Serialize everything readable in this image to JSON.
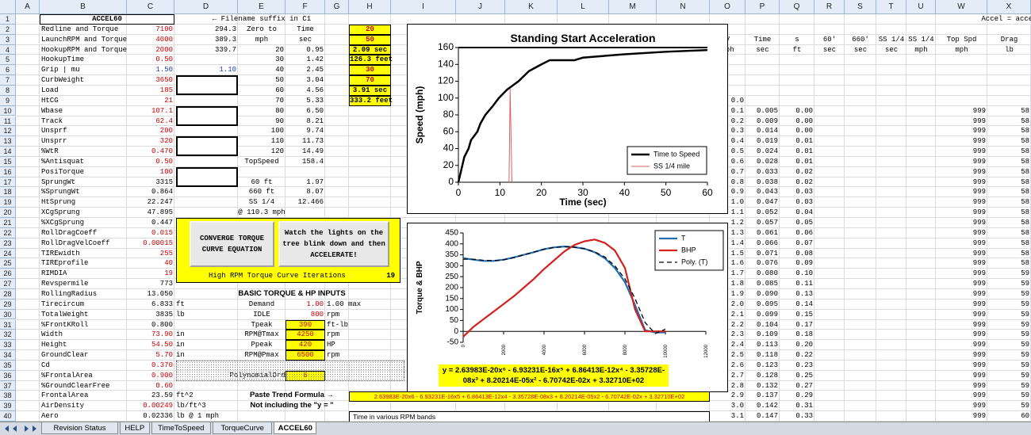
{
  "sheet": {
    "column_headers": [
      "A",
      "B",
      "C",
      "D",
      "E",
      "F",
      "G",
      "H",
      "I",
      "J",
      "K",
      "L",
      "M",
      "N",
      "O",
      "P",
      "Q",
      "R",
      "S",
      "T",
      "U",
      "W",
      "X"
    ],
    "row_headers": [
      "1",
      "2",
      "3",
      "4",
      "5",
      "6",
      "7",
      "8",
      "9",
      "10",
      "11",
      "12",
      "13",
      "14",
      "15",
      "16",
      "17",
      "18",
      "19",
      "20",
      "21",
      "22",
      "23",
      "24",
      "25",
      "26",
      "27",
      "28",
      "29",
      "30",
      "31",
      "32",
      "33",
      "34",
      "35",
      "36",
      "37",
      "38",
      "39",
      "40"
    ],
    "rows": [
      {
        "B": {
          "text": "ACCEL60",
          "bold": true
        },
        "E": "← Filename suffix in C1",
        "X": "Accel = accel"
      },
      {
        "B": "Redline and Torque",
        "C": {
          "text": "7100",
          "color": "#cc0000"
        },
        "D": "294.3",
        "E": "Zero to",
        "F": "Time",
        "H": {
          "text": "20",
          "color": "#cc0000",
          "fill": "#ffff00",
          "bold": true
        }
      },
      {
        "B": "LaunchRPM and Torque",
        "C": {
          "text": "4000",
          "color": "#cc0000"
        },
        "D": "389.3",
        "E": "mph",
        "F": "sec",
        "H": {
          "text": "50",
          "color": "#cc0000",
          "fill": "#ffff00",
          "bold": true
        },
        "O": "V",
        "P": "Time",
        "Q": "s",
        "R": "60'",
        "S": "660'",
        "T": "SS 1/4",
        "U": "SS 1/4",
        "W": "Top Spd",
        "X": "Drag"
      },
      {
        "B": "HookupRPM and Torque",
        "C": {
          "text": "2000",
          "color": "#cc0000"
        },
        "D": "339.7",
        "E": "20",
        "F": "0.95",
        "H": {
          "text": "2.09 sec",
          "color": "#000000",
          "fill": "#ffff00",
          "bold": true
        },
        "O": "mph",
        "P": "sec",
        "Q": "ft",
        "R": "sec",
        "S": "sec",
        "T": "sec",
        "U": "mph",
        "W": "mph",
        "X": "lb"
      },
      {
        "B": "HookupTime",
        "C": {
          "text": "0.50",
          "color": "#cc0000"
        },
        "E": "30",
        "F": "1.42",
        "H": {
          "text": "126.3 feet",
          "color": "#000000",
          "fill": "#ffff00",
          "bold": true
        }
      },
      {
        "B": "Grip | mu",
        "C": {
          "text": "1.50",
          "color": "#2040c0"
        },
        "D": {
          "text": "1.10",
          "color": "#2040c0"
        },
        "E": "40",
        "F": "2.45",
        "H": {
          "text": "30",
          "color": "#cc0000",
          "fill": "#ffff00",
          "bold": true
        }
      },
      {
        "B": "CurbWeight",
        "C": {
          "text": "3650",
          "color": "#cc0000"
        },
        "E": "50",
        "F": "3.04",
        "H": {
          "text": "70",
          "color": "#cc0000",
          "fill": "#ffff00",
          "bold": true
        }
      },
      {
        "B": "Load",
        "C": {
          "text": "185",
          "color": "#cc0000"
        },
        "E": "60",
        "F": "4.56",
        "H": {
          "text": "3.91 sec",
          "color": "#000000",
          "fill": "#ffff00",
          "bold": true
        }
      },
      {
        "B": "HtCG",
        "C": {
          "text": "21",
          "color": "#cc0000"
        },
        "E": "70",
        "F": "5.33",
        "H": {
          "text": "333.2 feet",
          "color": "#000000",
          "fill": "#ffff00",
          "bold": true
        },
        "O": "0.0"
      },
      {
        "B": "Wbase",
        "C": {
          "text": "107.1",
          "color": "#cc0000"
        },
        "E": "80",
        "F": "6.50",
        "O": "0.1",
        "P": "0.005",
        "Q": "0.00",
        "W": "999",
        "X": "58"
      },
      {
        "B": "Track",
        "C": {
          "text": "62.4",
          "color": "#cc0000"
        },
        "E": "90",
        "F": "8.21",
        "O": "0.2",
        "P": "0.009",
        "Q": "0.00",
        "W": "999",
        "X": "58"
      },
      {
        "B": "Unsprf",
        "C": {
          "text": "200",
          "color": "#cc0000"
        },
        "E": "100",
        "F": "9.74",
        "O": "0.3",
        "P": "0.014",
        "Q": "0.00",
        "W": "999",
        "X": "58"
      },
      {
        "B": "Unsprr",
        "C": {
          "text": "320",
          "color": "#cc0000"
        },
        "E": "110",
        "F": "11.73",
        "O": "0.4",
        "P": "0.019",
        "Q": "0.01",
        "W": "999",
        "X": "58"
      },
      {
        "B": "%WtR",
        "C": {
          "text": "0.470",
          "color": "#cc0000"
        },
        "E": "120",
        "F": "14.49",
        "O": "0.5",
        "P": "0.024",
        "Q": "0.01",
        "W": "999",
        "X": "58"
      },
      {
        "B": "%Antisquat",
        "C": {
          "text": "0.50",
          "color": "#cc0000"
        },
        "E": "TopSpeed",
        "F": "158.4",
        "O": "0.6",
        "P": "0.028",
        "Q": "0.01",
        "W": "999",
        "X": "58"
      },
      {
        "B": "PosiTorque",
        "C": {
          "text": "100",
          "color": "#cc0000"
        },
        "O": "0.7",
        "P": "0.033",
        "Q": "0.02",
        "W": "999",
        "X": "58"
      },
      {
        "B": "SprungWt",
        "C": "3315",
        "E": "60 ft",
        "F": "1.97",
        "O": "0.8",
        "P": "0.038",
        "Q": "0.02",
        "W": "999",
        "X": "58"
      },
      {
        "B": "%SprungWt",
        "C": "0.864",
        "E": "660 ft",
        "F": "8.07",
        "O": "0.9",
        "P": "0.043",
        "Q": "0.03",
        "W": "999",
        "X": "58"
      },
      {
        "B": "HtSprung",
        "C": "22.247",
        "E": "SS 1/4",
        "F": "12.466",
        "O": "1.0",
        "P": "0.047",
        "Q": "0.03",
        "W": "999",
        "X": "58"
      },
      {
        "B": "XCgSprung",
        "C": "47.895",
        "E": "@ 110.3 mph",
        "O": "1.1",
        "P": "0.052",
        "Q": "0.04",
        "W": "999",
        "X": "58"
      },
      {
        "B": "%XCgSprung",
        "C": "0.447",
        "O": "1.2",
        "P": "0.057",
        "Q": "0.05",
        "W": "999",
        "X": "58"
      },
      {
        "B": "RollDragCoeff",
        "C": {
          "text": "0.015",
          "color": "#cc0000"
        },
        "O": "1.3",
        "P": "0.061",
        "Q": "0.06",
        "W": "999",
        "X": "58"
      },
      {
        "B": "RollDragVelCoeff",
        "C": {
          "text": "0.00015",
          "color": "#cc0000"
        },
        "O": "1.4",
        "P": "0.066",
        "Q": "0.07",
        "W": "999",
        "X": "58"
      },
      {
        "B": "TIREwidth",
        "C": {
          "text": "255",
          "color": "#cc0000"
        },
        "O": "1.5",
        "P": "0.071",
        "Q": "0.08",
        "W": "999",
        "X": "58"
      },
      {
        "B": "TIREprofile",
        "C": {
          "text": "40",
          "color": "#cc0000"
        },
        "O": "1.6",
        "P": "0.076",
        "Q": "0.09",
        "W": "999",
        "X": "58"
      },
      {
        "B": "RIMDIA",
        "C": {
          "text": "19",
          "color": "#cc0000"
        },
        "O": "1.7",
        "P": "0.080",
        "Q": "0.10",
        "W": "999",
        "X": "59"
      },
      {
        "B": "Revspermile",
        "C": "773",
        "O": "1.8",
        "P": "0.085",
        "Q": "0.11",
        "W": "999",
        "X": "59"
      },
      {
        "B": "RollingRadius",
        "C": "13.050",
        "E": {
          "text": "BASIC TORQUE & HP INPUTS",
          "bold": true
        },
        "O": "1.9",
        "P": "0.090",
        "Q": "0.13",
        "W": "999",
        "X": "59"
      },
      {
        "B": "Tirecircum",
        "C": "6.833",
        "D": "ft",
        "E": "Demand",
        "F": {
          "text": "1.00",
          "color": "#cc0000"
        },
        "G": "1.00 max",
        "O": "2.0",
        "P": "0.095",
        "Q": "0.14",
        "W": "999",
        "X": "59"
      },
      {
        "B": "TotalWeight",
        "C": "3835",
        "D": "lb",
        "E": "IDLE",
        "F": {
          "text": "800",
          "color": "#cc0000"
        },
        "G": "rpm",
        "O": "2.1",
        "P": "0.099",
        "Q": "0.15",
        "W": "999",
        "X": "59"
      },
      {
        "B": "%FrontKRoll",
        "C": "0.800",
        "E": "Tpeak",
        "F": {
          "text": "390",
          "color": "#cc0000",
          "fill": "#ffff00"
        },
        "G": "ft-lb",
        "O": "2.2",
        "P": "0.104",
        "Q": "0.17",
        "W": "999",
        "X": "59"
      },
      {
        "B": "Width",
        "C": {
          "text": "73.90",
          "color": "#cc0000"
        },
        "D": "in",
        "E": "RPM@Tmax",
        "F": {
          "text": "4250",
          "color": "#cc0000",
          "fill": "#ffff00"
        },
        "G": "rpm",
        "O": "2.3",
        "P": "0.109",
        "Q": "0.18",
        "W": "999",
        "X": "59"
      },
      {
        "B": "Height",
        "C": {
          "text": "54.50",
          "color": "#cc0000"
        },
        "D": "in",
        "E": "Ppeak",
        "F": {
          "text": "420",
          "color": "#cc0000",
          "fill": "#ffff00"
        },
        "G": "HP",
        "O": "2.4",
        "P": "0.113",
        "Q": "0.20",
        "W": "999",
        "X": "59"
      },
      {
        "B": "GroundClear",
        "C": {
          "text": "5.70",
          "color": "#cc0000"
        },
        "D": "in",
        "E": "RPM@Pmax",
        "F": {
          "text": "6500",
          "color": "#cc0000",
          "fill": "#ffff00"
        },
        "G": "rpm",
        "O": "2.5",
        "P": "0.118",
        "Q": "0.22",
        "W": "999",
        "X": "59"
      },
      {
        "B": "Cd",
        "C": {
          "text": "0.370",
          "color": "#cc0000"
        },
        "O": "2.6",
        "P": "0.123",
        "Q": "0.23",
        "W": "999",
        "X": "59"
      },
      {
        "B": "%FrontalArea",
        "C": {
          "text": "0.900",
          "color": "#cc0000"
        },
        "E": "PolynomialOrder",
        "F": {
          "text": "6",
          "color": "#cc0000",
          "fill": "#ffff00"
        },
        "O": "2.7",
        "P": "0.128",
        "Q": "0.25",
        "W": "999",
        "X": "59"
      },
      {
        "B": "%GroundClearFree",
        "C": {
          "text": "0.60",
          "color": "#cc0000"
        },
        "O": "2.8",
        "P": "0.132",
        "Q": "0.27",
        "W": "999",
        "X": "59"
      },
      {
        "B": "FrontalArea",
        "C": "23.59",
        "D": "ft^2",
        "E": {
          "text": "Paste Trend Formula →",
          "bold": true
        },
        "O": "2.9",
        "P": "0.137",
        "Q": "0.29",
        "W": "999",
        "X": "59"
      },
      {
        "B": "AirDensity",
        "C": {
          "text": "0.00249",
          "color": "#cc0000"
        },
        "D": "lb/ft^3",
        "E": {
          "text": "Not including the \"y = \"",
          "bold": true
        },
        "O": "3.0",
        "P": "0.142",
        "Q": "0.31",
        "W": "999",
        "X": "59"
      },
      {
        "B": "Aero",
        "C": "0.02336",
        "D": "lb @ 1 mph",
        "O": "3.1",
        "P": "0.147",
        "Q": "0.33",
        "W": "999",
        "X": "60"
      }
    ]
  },
  "panel": {
    "converge_button": "CONVERGE TORQUE CURVE EQUATION",
    "launch_button": "Watch the lights on the tree blink down and then ACCELERATE!",
    "iterations_label": "High RPM Torque Curve Iterations",
    "iterations": "19"
  },
  "formula_box": "2.63983E-20x6 - 6.93231E-16x5 + 6.86413E-12x4 - 3.35728E-08x3 + 8.20214E-05x2 - 6.70742E-02x + 3.32710E+02",
  "rpm_band_box": "Time in various RPM bands",
  "charts": [
    {
      "type": "line",
      "title": "Standing Start Acceleration",
      "x_label": "Time (sec)",
      "y_label": "Speed (mph)",
      "xlim": [
        0,
        60
      ],
      "xticks": [
        0,
        10,
        20,
        30,
        40,
        50,
        60
      ],
      "ylim": [
        0,
        160
      ],
      "yticks": [
        0,
        20,
        40,
        60,
        80,
        100,
        120,
        140,
        160
      ],
      "legend": "lower right",
      "series": [
        {
          "name": "Time to Speed",
          "color": "#000000",
          "x": [
            0,
            0.95,
            1.42,
            2.45,
            3.04,
            4.56,
            5.33,
            6.5,
            8.21,
            9.74,
            11.73,
            14.49,
            17,
            20,
            22,
            28,
            30,
            35,
            40,
            50,
            60
          ],
          "values": [
            0,
            20,
            30,
            40,
            50,
            60,
            70,
            80,
            90,
            100,
            110,
            120,
            132,
            140,
            145,
            145,
            148,
            150,
            152,
            155,
            157
          ]
        },
        {
          "name": "SS 1/4 mile",
          "color": "#e06060",
          "x": [
            12.2,
            12.466,
            12.9
          ],
          "values": [
            0,
            110.3,
            0
          ]
        }
      ]
    },
    {
      "type": "line",
      "y_label": "Torque & BHP",
      "xlim": [
        0,
        12000
      ],
      "xticks": [
        0,
        2000,
        4000,
        6000,
        8000,
        10000,
        12000
      ],
      "ylim": [
        -50,
        450
      ],
      "yticks": [
        -50,
        0,
        50,
        100,
        150,
        200,
        250,
        300,
        350,
        400,
        450
      ],
      "legend": "upper right",
      "equation": "y = 2.63983E-20x⁶ - 6.93231E-16x⁵ + 6.86413E-12x⁴ - 3.35728E-08x³ + 8.20214E-05x² - 6.70742E-02x + 3.32710E+02",
      "series": [
        {
          "name": "T",
          "color": "#1f6fb4",
          "x": [
            0,
            500,
            1000,
            1500,
            2000,
            2500,
            3000,
            3500,
            4000,
            4500,
            5000,
            5500,
            6000,
            6500,
            7000,
            7500,
            8000,
            8500,
            9000,
            9500,
            10000
          ],
          "values": [
            335,
            328,
            322,
            322,
            328,
            338,
            350,
            362,
            376,
            384,
            388,
            385,
            378,
            362,
            335,
            290,
            225,
            120,
            5,
            -5,
            -5
          ]
        },
        {
          "name": "BHP",
          "color": "#d62020",
          "x": [
            0,
            500,
            1000,
            1500,
            2000,
            2500,
            3000,
            3500,
            4000,
            4500,
            5000,
            5500,
            6000,
            6500,
            7000,
            7500,
            8000,
            8500,
            9000,
            9500,
            10000
          ],
          "values": [
            -25,
            20,
            55,
            90,
            125,
            160,
            200,
            240,
            285,
            325,
            365,
            395,
            412,
            420,
            405,
            370,
            290,
            100,
            0,
            0,
            0
          ]
        },
        {
          "name": "Poly. (T)",
          "color": "#000000",
          "style": "dashed",
          "x": [
            0,
            500,
            1000,
            1500,
            2000,
            2500,
            3000,
            3500,
            4000,
            4500,
            5000,
            5500,
            6000,
            6500,
            7000,
            7500,
            8000,
            8500,
            9000,
            9500,
            10000
          ],
          "values": [
            330,
            330,
            325,
            323,
            327,
            337,
            350,
            363,
            375,
            384,
            387,
            385,
            378,
            364,
            340,
            300,
            240,
            150,
            40,
            -10,
            10
          ]
        }
      ]
    }
  ],
  "tabs": [
    "Revision Status",
    "HELP",
    "TimeToSpeed",
    "TorqueCurve",
    "ACCEL60"
  ],
  "active_tab": 4
}
